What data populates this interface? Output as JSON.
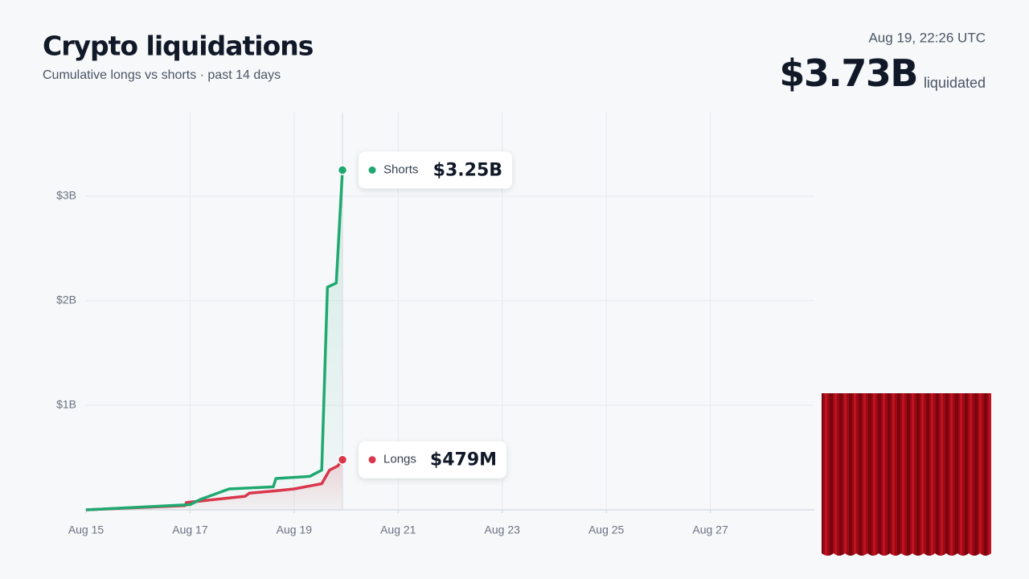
{
  "header": {
    "title": "Crypto liquidations",
    "subtitle": "Cumulative longs vs shorts · past 14 days",
    "timestamp": "Aug 19, 22:26 UTC",
    "total": "$3.73B",
    "total_suffix": "liquidated"
  },
  "chart_data": {
    "type": "line",
    "xlim": [
      15,
      29
    ],
    "ylim": [
      0,
      3.8
    ],
    "xticks": [
      {
        "value": 15,
        "label": "Aug 15"
      },
      {
        "value": 17,
        "label": "Aug 17"
      },
      {
        "value": 19,
        "label": "Aug 19"
      },
      {
        "value": 21,
        "label": "Aug 21"
      },
      {
        "value": 23,
        "label": "Aug 23"
      },
      {
        "value": 25,
        "label": "Aug 25"
      },
      {
        "value": 27,
        "label": "Aug 27"
      }
    ],
    "yticks": [
      {
        "value": 1,
        "label": "$1B"
      },
      {
        "value": 2,
        "label": "$2B"
      },
      {
        "value": 3,
        "label": "$3B"
      }
    ],
    "grid": true,
    "series": [
      {
        "name": "Shorts",
        "color": "#1fa971",
        "x": [
          15.0,
          17.0,
          17.2,
          17.75,
          18.6,
          18.65,
          19.3,
          19.53,
          19.64,
          19.81,
          19.93
        ],
        "values": [
          0,
          0.05,
          0.1,
          0.2,
          0.22,
          0.3,
          0.32,
          0.38,
          2.13,
          2.17,
          3.25
        ],
        "value_labels": [
          null,
          null,
          null,
          null,
          null,
          null,
          null,
          null,
          null,
          null,
          "$3.25B"
        ]
      },
      {
        "name": "Longs",
        "color": "#d9374b",
        "x": [
          15.0,
          16.9,
          16.93,
          18.06,
          18.14,
          18.6,
          19.0,
          19.53,
          19.68,
          19.84,
          19.93
        ],
        "values": [
          0,
          0.04,
          0.07,
          0.13,
          0.16,
          0.18,
          0.2,
          0.25,
          0.38,
          0.42,
          0.479
        ],
        "value_labels": [
          null,
          null,
          null,
          null,
          null,
          null,
          null,
          null,
          null,
          null,
          "$479M"
        ]
      }
    ]
  }
}
